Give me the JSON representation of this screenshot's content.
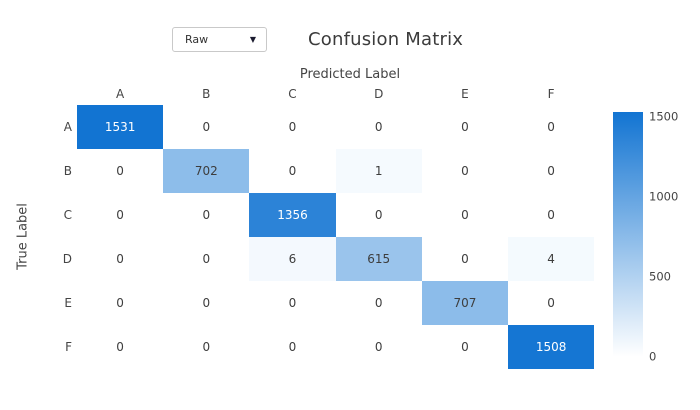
{
  "controls": {
    "dropdown_value": "Raw",
    "dropdown_arrow": "▼"
  },
  "title": "Confusion Matrix",
  "chart_data": {
    "type": "heatmap",
    "title": "Confusion Matrix",
    "xlabel": "Predicted Label",
    "ylabel": "True Label",
    "categories": [
      "A",
      "B",
      "C",
      "D",
      "E",
      "F"
    ],
    "matrix": [
      [
        1531,
        0,
        0,
        0,
        0,
        0
      ],
      [
        0,
        702,
        0,
        1,
        0,
        0
      ],
      [
        0,
        0,
        1356,
        0,
        0,
        0
      ],
      [
        0,
        0,
        6,
        615,
        0,
        4
      ],
      [
        0,
        0,
        0,
        0,
        707,
        0
      ],
      [
        0,
        0,
        0,
        0,
        0,
        1508
      ]
    ],
    "colorbar": {
      "ticks": [
        0,
        500,
        1000,
        1500
      ],
      "min": 0,
      "max": 1531
    },
    "colors": {
      "high": "#1274d2",
      "low": "#f5fafe",
      "zero": "#ffffff",
      "text_dark": "#3d3d3d",
      "text_light": "#ffffff"
    },
    "legend_position": "right",
    "grid": false
  }
}
